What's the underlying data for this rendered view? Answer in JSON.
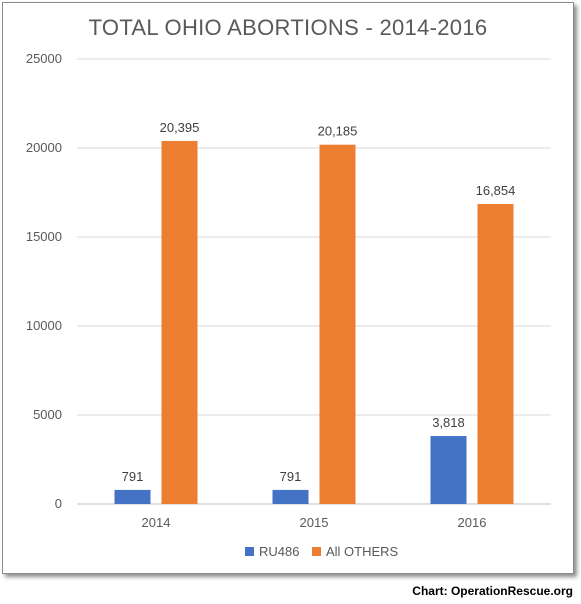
{
  "chart_data": {
    "type": "bar",
    "title": "TOTAL OHIO ABORTIONS - 2014-2016",
    "categories": [
      "2014",
      "2015",
      "2016"
    ],
    "series": [
      {
        "name": "RU486",
        "values": [
          791,
          791,
          3818
        ],
        "labels": [
          "791",
          "791",
          "3,818"
        ],
        "color": "#4472c4"
      },
      {
        "name": "All OTHERS",
        "values": [
          20395,
          20185,
          16854
        ],
        "labels": [
          "20,395",
          "20,185",
          "16,854"
        ],
        "color": "#ed7d31"
      }
    ],
    "xlabel": "",
    "ylabel": "",
    "ylim": [
      0,
      25000
    ],
    "yticks": [
      "0",
      "5000",
      "10000",
      "15000",
      "20000",
      "25000"
    ],
    "grid": true,
    "legend_position": "bottom"
  },
  "credit": "Chart: OperationRescue.org"
}
